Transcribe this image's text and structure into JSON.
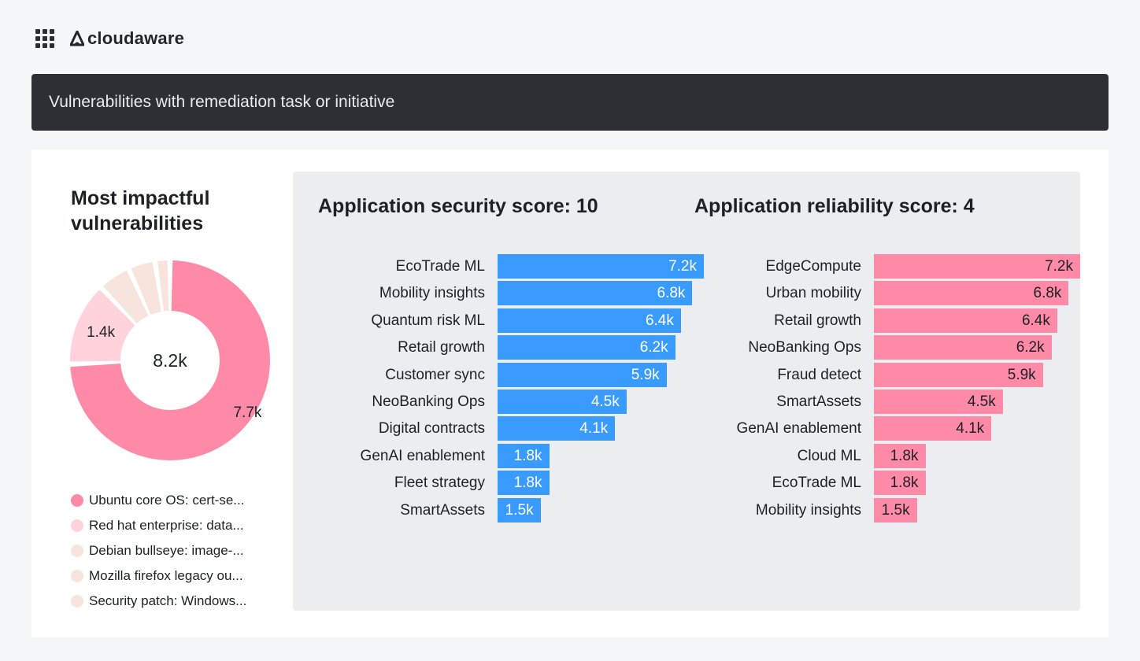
{
  "app": {
    "name": "cloudaware"
  },
  "banner": {
    "title": "Vulnerabilities with remediation task or initiative"
  },
  "donut": {
    "title": "Most impactful vulnerabilities",
    "center_label": "8.2k",
    "slices": [
      {
        "name": "Ubuntu core OS: cert-se...",
        "value": 7.7,
        "label": "7.7k",
        "color": "#ff8aa8"
      },
      {
        "name": "Red hat enterprise: data...",
        "value": 1.4,
        "label": "1.4k",
        "color": "#ffd2dc"
      },
      {
        "name": "Debian bullseye: image-...",
        "value": 0.55,
        "label": "",
        "color": "#f6e4dd"
      },
      {
        "name": "Mozilla firefox legacy ou...",
        "value": 0.45,
        "label": "",
        "color": "#f6e4dd"
      },
      {
        "name": "Security patch: Windows...",
        "value": 0.25,
        "label": "",
        "color": "#f6e4dd"
      }
    ]
  },
  "chart_data": [
    {
      "type": "bar",
      "orientation": "horizontal",
      "title": "Application security score: 10",
      "color": "#3a9bff",
      "categories": [
        "EcoTrade ML",
        "Mobility insights",
        "Quantum risk ML",
        "Retail growth",
        "Customer sync",
        "NeoBanking Ops",
        "Digital contracts",
        "GenAI enablement",
        "Fleet strategy",
        "SmartAssets"
      ],
      "values": [
        7.2,
        6.8,
        6.4,
        6.2,
        5.9,
        4.5,
        4.1,
        1.8,
        1.8,
        1.5
      ],
      "labels": [
        "7.2k",
        "6.8k",
        "6.4k",
        "6.2k",
        "5.9k",
        "4.5k",
        "4.1k",
        "1.8k",
        "1.8k",
        "1.5k"
      ]
    },
    {
      "type": "bar",
      "orientation": "horizontal",
      "title": "Application reliability score: 4",
      "color": "#ff8aa8",
      "categories": [
        "EdgeCompute",
        "Urban mobility",
        "Retail growth",
        "NeoBanking Ops",
        "Fraud detect",
        "SmartAssets",
        "GenAI enablement",
        "Cloud ML",
        "EcoTrade ML",
        "Mobility insights"
      ],
      "values": [
        7.2,
        6.8,
        6.4,
        6.2,
        5.9,
        4.5,
        4.1,
        1.8,
        1.8,
        1.5
      ],
      "labels": [
        "7.2k",
        "6.8k",
        "6.4k",
        "6.2k",
        "5.9k",
        "4.5k",
        "4.1k",
        "1.8k",
        "1.8k",
        "1.5k"
      ]
    }
  ]
}
